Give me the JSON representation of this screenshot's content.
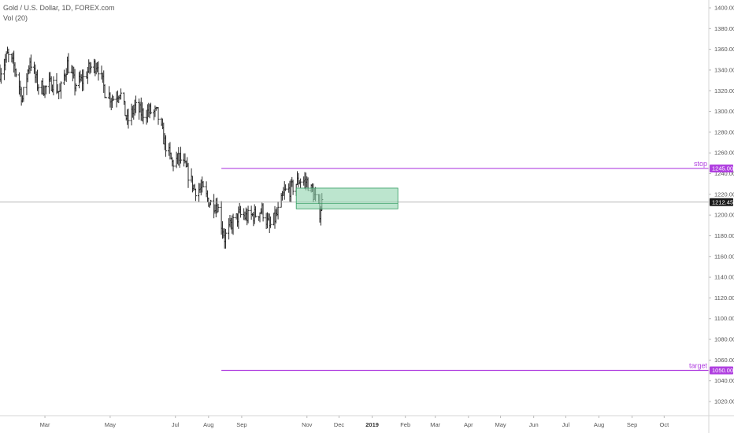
{
  "header": {
    "symbol_line": "Gold / U.S. Dollar, 1D, FOREX.com",
    "indicator": "Vol (20)"
  },
  "colors": {
    "bars": "#2a2a2a",
    "level": "#b040e0",
    "last_price_line": "#9e9e9e",
    "last_price_tag": "#1a1a1a",
    "zone_fill": "#8fd4ae",
    "zone_stroke": "#2e9a5e",
    "axis_text": "#555555"
  },
  "chart_data": {
    "type": "ohlc",
    "ylim": [
      1005,
      1410
    ],
    "y_ticks": [
      1020,
      1040,
      1060,
      1080,
      1100,
      1120,
      1140,
      1160,
      1180,
      1200,
      1220,
      1240,
      1260,
      1280,
      1300,
      1320,
      1340,
      1360,
      1380,
      1400
    ],
    "x_ticks": [
      {
        "date": "2018-03-01",
        "label": "Mar"
      },
      {
        "date": "2018-05-01",
        "label": "May"
      },
      {
        "date": "2018-07-01",
        "label": "Jul"
      },
      {
        "date": "2018-08-01",
        "label": "Aug"
      },
      {
        "date": "2018-09-01",
        "label": "Sep"
      },
      {
        "date": "2018-11-01",
        "label": "Nov"
      },
      {
        "date": "2018-12-01",
        "label": "Dec"
      },
      {
        "date": "2019-01-01",
        "label": "2019",
        "bold": true
      },
      {
        "date": "2019-02-01",
        "label": "Feb"
      },
      {
        "date": "2019-03-01",
        "label": "Mar"
      },
      {
        "date": "2019-04-01",
        "label": "Apr"
      },
      {
        "date": "2019-05-01",
        "label": "May"
      },
      {
        "date": "2019-06-01",
        "label": "Jun"
      },
      {
        "date": "2019-07-01",
        "label": "Jul"
      },
      {
        "date": "2019-08-01",
        "label": "Aug"
      },
      {
        "date": "2019-09-01",
        "label": "Sep"
      },
      {
        "date": "2019-10-01",
        "label": "Oct"
      }
    ],
    "x_range": [
      "2018-01-18",
      "2019-10-28"
    ],
    "anchors": [
      [
        "2018-01-18",
        1338
      ],
      [
        "2018-01-25",
        1354
      ],
      [
        "2018-02-01",
        1342
      ],
      [
        "2018-02-08",
        1312
      ],
      [
        "2018-02-15",
        1350
      ],
      [
        "2018-02-22",
        1326
      ],
      [
        "2018-03-01",
        1322
      ],
      [
        "2018-03-08",
        1328
      ],
      [
        "2018-03-15",
        1318
      ],
      [
        "2018-03-22",
        1346
      ],
      [
        "2018-03-29",
        1326
      ],
      [
        "2018-04-05",
        1330
      ],
      [
        "2018-04-12",
        1342
      ],
      [
        "2018-04-19",
        1346
      ],
      [
        "2018-04-26",
        1320
      ],
      [
        "2018-05-03",
        1312
      ],
      [
        "2018-05-10",
        1320
      ],
      [
        "2018-05-17",
        1290
      ],
      [
        "2018-05-24",
        1304
      ],
      [
        "2018-05-31",
        1298
      ],
      [
        "2018-06-07",
        1300
      ],
      [
        "2018-06-14",
        1298
      ],
      [
        "2018-06-21",
        1270
      ],
      [
        "2018-06-28",
        1250
      ],
      [
        "2018-07-05",
        1255
      ],
      [
        "2018-07-12",
        1242
      ],
      [
        "2018-07-19",
        1225
      ],
      [
        "2018-07-26",
        1225
      ],
      [
        "2018-08-02",
        1212
      ],
      [
        "2018-08-09",
        1210
      ],
      [
        "2018-08-16",
        1178
      ],
      [
        "2018-08-23",
        1192
      ],
      [
        "2018-08-30",
        1200
      ],
      [
        "2018-09-06",
        1198
      ],
      [
        "2018-09-13",
        1200
      ],
      [
        "2018-09-20",
        1205
      ],
      [
        "2018-09-27",
        1188
      ],
      [
        "2018-10-04",
        1200
      ],
      [
        "2018-10-11",
        1222
      ],
      [
        "2018-10-18",
        1226
      ],
      [
        "2018-10-25",
        1234
      ],
      [
        "2018-11-01",
        1232
      ],
      [
        "2018-11-08",
        1218
      ],
      [
        "2018-11-13",
        1203
      ],
      [
        "2018-11-15",
        1212
      ]
    ],
    "levels": [
      {
        "name": "stop",
        "label": "stop",
        "price": 1245.0,
        "price_label": "1245.00",
        "from": "2018-08-13"
      },
      {
        "name": "target",
        "label": "target",
        "price": 1050.0,
        "price_label": "1050.00",
        "from": "2018-08-13"
      }
    ],
    "last_price": {
      "value": 1212.45,
      "label": "1212.45"
    },
    "zone": {
      "from": "2018-10-22",
      "to": "2019-01-25",
      "top": 1226,
      "bottom": 1206,
      "mid": 1211
    }
  }
}
